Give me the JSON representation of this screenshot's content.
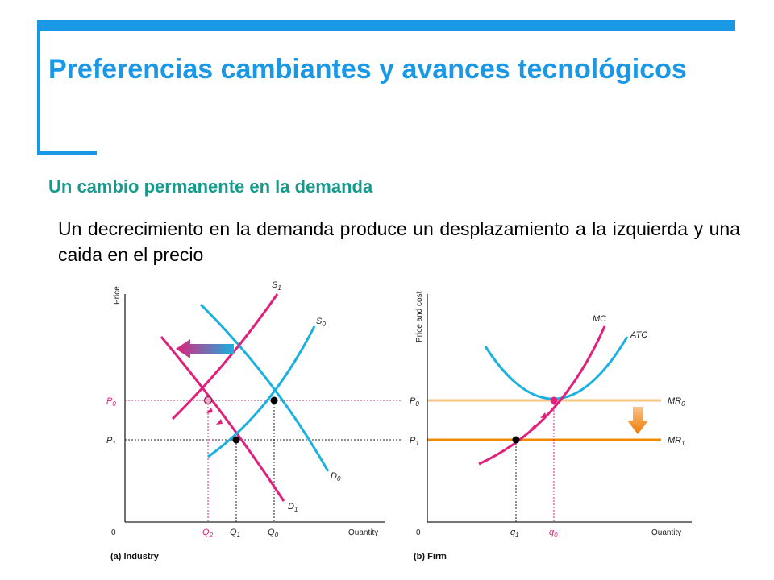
{
  "slide": {
    "title": "Preferencias cambiantes y avances tecnológicos",
    "subtitle": "Un cambio permanente en la demanda",
    "body": "Un decrecimiento en la demanda produce un desplazamiento a la izquierda y una caida en el precio"
  },
  "colors": {
    "accent": "#1a98e6",
    "subtitle": "#159a8c",
    "magenta": "#e0207a",
    "cyan": "#1ab0e0",
    "orange": "#f08a00",
    "light_orange": "#f9c386"
  },
  "industry": {
    "y_axis": "Price",
    "x_axis": "Quantity",
    "origin": "0",
    "caption": "(a) Industry",
    "p0": "P",
    "p0_sub": "0",
    "p1": "P",
    "p1_sub": "1",
    "q2": "Q",
    "q2_sub": "2",
    "q1": "Q",
    "q1_sub": "1",
    "q0": "Q",
    "q0_sub": "0",
    "s1": "S",
    "s1_sub": "1",
    "s0": "S",
    "s0_sub": "0",
    "d0": "D",
    "d0_sub": "0",
    "d1": "D",
    "d1_sub": "1"
  },
  "firm": {
    "y_axis": "Price and cost",
    "x_axis": "Quantity",
    "origin": "0",
    "caption": "(b) Firm",
    "p0": "P",
    "p0_sub": "0",
    "p1": "P",
    "p1_sub": "1",
    "q1": "q",
    "q1_sub": "1",
    "q0": "q",
    "q0_sub": "0",
    "mc": "MC",
    "atc": "ATC",
    "mr0": "MR",
    "mr0_sub": "0",
    "mr1": "MR",
    "mr1_sub": "1"
  }
}
